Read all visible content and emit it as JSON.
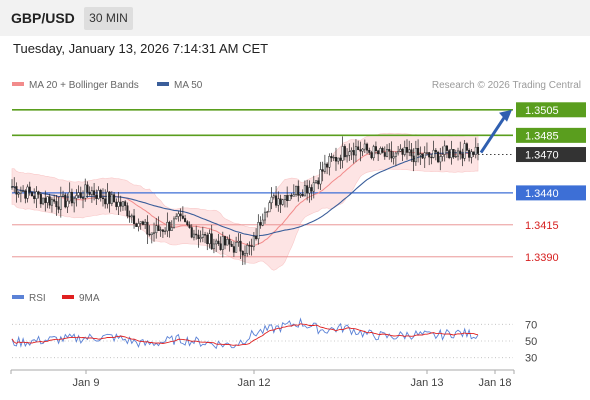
{
  "header": {
    "symbol": "GBP/USD",
    "timeframe": "30 MIN"
  },
  "datetime": "Tuesday, January 13, 2026 7:14:31 AM CET",
  "credit": "Research © 2026 Trading Central",
  "legend": [
    {
      "label": "MA 20 + Bollinger Bands",
      "color": "#f28b8b"
    },
    {
      "label": "MA 50",
      "color": "#3b5e9a"
    }
  ],
  "rsi_legend": [
    {
      "label": "RSI",
      "color": "#5b82d6"
    },
    {
      "label": "9MA",
      "color": "#e02020"
    }
  ],
  "colors": {
    "green": "#5a9e1e",
    "blue": "#3d6fd6",
    "red": "#d62020",
    "last": "#333333",
    "candle": "#222222",
    "band": "#fde4e4"
  },
  "chart_data": {
    "type": "candlestick",
    "price_ylim": [
      1.3375,
      1.3515
    ],
    "x_ticks": [
      "Jan 9",
      "Jan 12",
      "Jan 13",
      "Jan 18"
    ],
    "levels": [
      {
        "label": "1.3505",
        "value": 1.3505,
        "kind": "resistance"
      },
      {
        "label": "1.3485",
        "value": 1.3485,
        "kind": "resistance"
      },
      {
        "label": "1.3470",
        "value": 1.347,
        "kind": "last"
      },
      {
        "label": "1.3440",
        "value": 1.344,
        "kind": "pivot"
      },
      {
        "label": "1.3415",
        "value": 1.3415,
        "kind": "support"
      },
      {
        "label": "1.3390",
        "value": 1.339,
        "kind": "support"
      }
    ],
    "rsi_ticks": [
      "70",
      "50",
      "30"
    ],
    "rsi_ylim": [
      20,
      80
    ],
    "close_anchors": [
      [
        0,
        1.3445
      ],
      [
        10,
        1.3438
      ],
      [
        22,
        1.3432
      ],
      [
        35,
        1.3442
      ],
      [
        50,
        1.343
      ],
      [
        62,
        1.3408
      ],
      [
        75,
        1.3418
      ],
      [
        88,
        1.3403
      ],
      [
        100,
        1.3398
      ],
      [
        108,
        1.3396
      ],
      [
        114,
        1.343
      ],
      [
        125,
        1.344
      ],
      [
        135,
        1.3446
      ],
      [
        142,
        1.3462
      ],
      [
        152,
        1.3476
      ],
      [
        160,
        1.3473
      ],
      [
        170,
        1.3468
      ],
      [
        178,
        1.347
      ],
      [
        188,
        1.3468
      ],
      [
        198,
        1.3472
      ],
      [
        210,
        1.3474
      ]
    ],
    "rsi_anchors": [
      [
        0,
        48
      ],
      [
        20,
        52
      ],
      [
        45,
        55
      ],
      [
        60,
        46
      ],
      [
        75,
        52
      ],
      [
        90,
        47
      ],
      [
        100,
        45
      ],
      [
        110,
        60
      ],
      [
        120,
        66
      ],
      [
        130,
        72
      ],
      [
        140,
        63
      ],
      [
        150,
        66
      ],
      [
        160,
        58
      ],
      [
        170,
        55
      ],
      [
        180,
        58
      ],
      [
        190,
        56
      ],
      [
        200,
        60
      ],
      [
        210,
        57
      ]
    ],
    "candle_count": 211,
    "forecast": {
      "from": 1.347,
      "to": 1.3505
    }
  }
}
